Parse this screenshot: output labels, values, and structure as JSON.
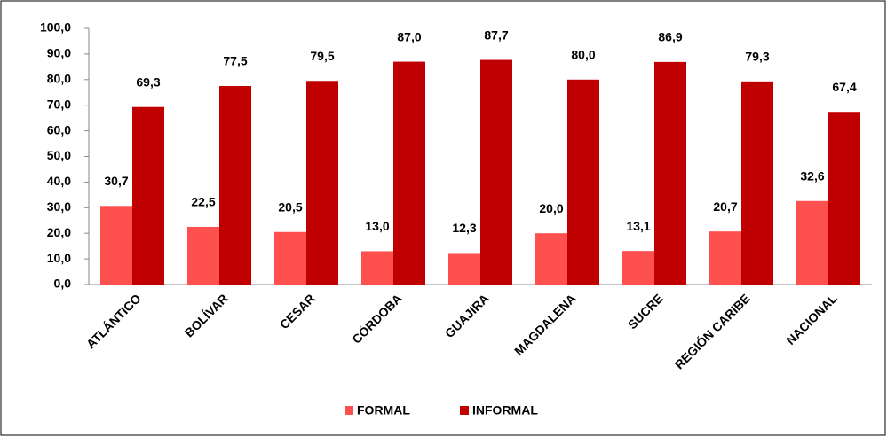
{
  "chart_data": {
    "type": "bar",
    "categories": [
      "ATLÁNTICO",
      "BOLÍVAR",
      "CESAR",
      "CÓRDOBA",
      "GUAJIRA",
      "MAGDALENA",
      "SUCRE",
      "REGIÓN CARIBE",
      "NACIONAL"
    ],
    "series": [
      {
        "name": "FORMAL",
        "color": "#ff5050",
        "values": [
          30.7,
          22.5,
          20.5,
          13.0,
          12.3,
          20.0,
          13.1,
          20.7,
          32.6
        ],
        "value_labels": [
          "30,7",
          "22,5",
          "20,5",
          "13,0",
          "12,3",
          "20,0",
          "13,1",
          "20,7",
          "32,6"
        ]
      },
      {
        "name": "INFORMAL",
        "color": "#c00000",
        "values": [
          69.3,
          77.5,
          79.5,
          87.0,
          87.7,
          80.0,
          86.9,
          79.3,
          67.4
        ],
        "value_labels": [
          "69,3",
          "77,5",
          "79,5",
          "87,0",
          "87,7",
          "80,0",
          "86,9",
          "79,3",
          "67,4"
        ]
      }
    ],
    "ylim": [
      0,
      100
    ],
    "yticks": [
      {
        "value": 0,
        "label": "0,0"
      },
      {
        "value": 10,
        "label": "10,0"
      },
      {
        "value": 20,
        "label": "20,0"
      },
      {
        "value": 30,
        "label": "30,0"
      },
      {
        "value": 40,
        "label": "40,0"
      },
      {
        "value": 50,
        "label": "50,0"
      },
      {
        "value": 60,
        "label": "60,0"
      },
      {
        "value": 70,
        "label": "70,0"
      },
      {
        "value": 80,
        "label": "80,0"
      },
      {
        "value": 90,
        "label": "90,0"
      },
      {
        "value": 100,
        "label": "100,0"
      }
    ],
    "grid": false,
    "legend": "bottom"
  }
}
